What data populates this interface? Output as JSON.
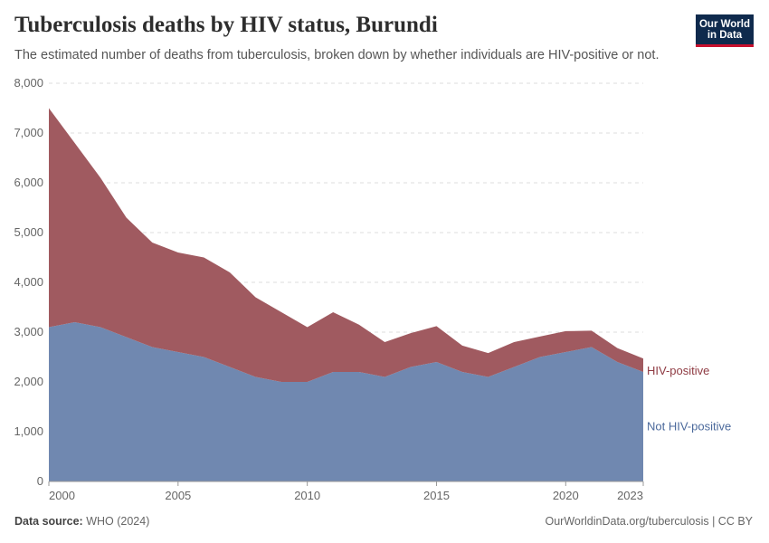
{
  "header": {
    "title": "Tuberculosis deaths by HIV status, Burundi",
    "subtitle": "The estimated number of deaths from tuberculosis, broken down by whether individuals are HIV-positive or not."
  },
  "logo": {
    "line1": "Our World",
    "line2": "in Data"
  },
  "footer": {
    "source_label": "Data source:",
    "source_value": "WHO (2024)",
    "link_text": "OurWorldinData.org/tuberculosis | CC BY"
  },
  "colors": {
    "not_hiv_positive": "#7088b0",
    "hiv_positive": "#a05a60",
    "not_hiv_positive_label": "#4c6a9c",
    "hiv_positive_label": "#8f3b43",
    "logo_bg": "#0f2a4d",
    "logo_accent": "#c8102e"
  },
  "chart_data": {
    "type": "area",
    "stacked": true,
    "x": [
      2000,
      2001,
      2002,
      2003,
      2004,
      2005,
      2006,
      2007,
      2008,
      2009,
      2010,
      2011,
      2012,
      2013,
      2014,
      2015,
      2016,
      2017,
      2018,
      2019,
      2020,
      2021,
      2022,
      2023
    ],
    "series": [
      {
        "name": "Not HIV-positive",
        "color": "#7088b0",
        "values": [
          3100,
          3200,
          3100,
          2900,
          2700,
          2600,
          2500,
          2300,
          2100,
          2000,
          2000,
          2200,
          2200,
          2100,
          2300,
          2400,
          2200,
          2100,
          2300,
          2500,
          2600,
          2700,
          2400,
          2200
        ]
      },
      {
        "name": "HIV-positive",
        "color": "#a05a60",
        "values": [
          4400,
          3600,
          3000,
          2400,
          2100,
          2000,
          2000,
          1900,
          1600,
          1400,
          1100,
          1200,
          950,
          700,
          680,
          720,
          530,
          480,
          500,
          410,
          420,
          330,
          280,
          270
        ]
      }
    ],
    "ylim": [
      0,
      8000
    ],
    "yticks": [
      0,
      1000,
      2000,
      3000,
      4000,
      5000,
      6000,
      7000,
      8000
    ],
    "ytick_labels": [
      "0",
      "1,000",
      "2,000",
      "3,000",
      "4,000",
      "5,000",
      "6,000",
      "7,000",
      "8,000"
    ],
    "xticks": [
      2000,
      2005,
      2010,
      2015,
      2020,
      2023
    ],
    "xtick_labels": [
      "2000",
      "2005",
      "2010",
      "2015",
      "2020",
      "2023"
    ],
    "grid": "horizontal-dashed",
    "legend": "inline-right"
  }
}
